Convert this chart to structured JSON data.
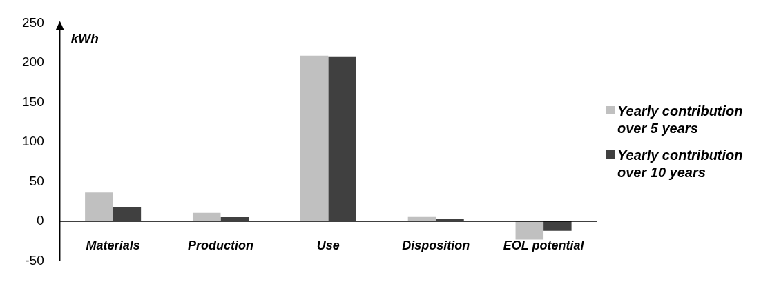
{
  "chart_data": {
    "type": "bar",
    "ylabel": "kWh",
    "categories": [
      "Materials",
      "Production",
      "Use",
      "Disposition",
      "EOL potential"
    ],
    "series": [
      {
        "name": "Yearly contribution over 5 years",
        "color": "#c0c0c0",
        "values": [
          36.3,
          10.6,
          208.8,
          5.5,
          -22.9
        ]
      },
      {
        "name": "Yearly contribution over 10 years",
        "color": "#404040",
        "values": [
          17.9,
          5.3,
          208,
          2.6,
          -11.8
        ]
      }
    ],
    "ylim": [
      -50,
      250
    ],
    "yticks": [
      -50,
      0,
      50,
      100,
      150,
      200,
      250
    ],
    "grid": false,
    "legend": "right"
  }
}
